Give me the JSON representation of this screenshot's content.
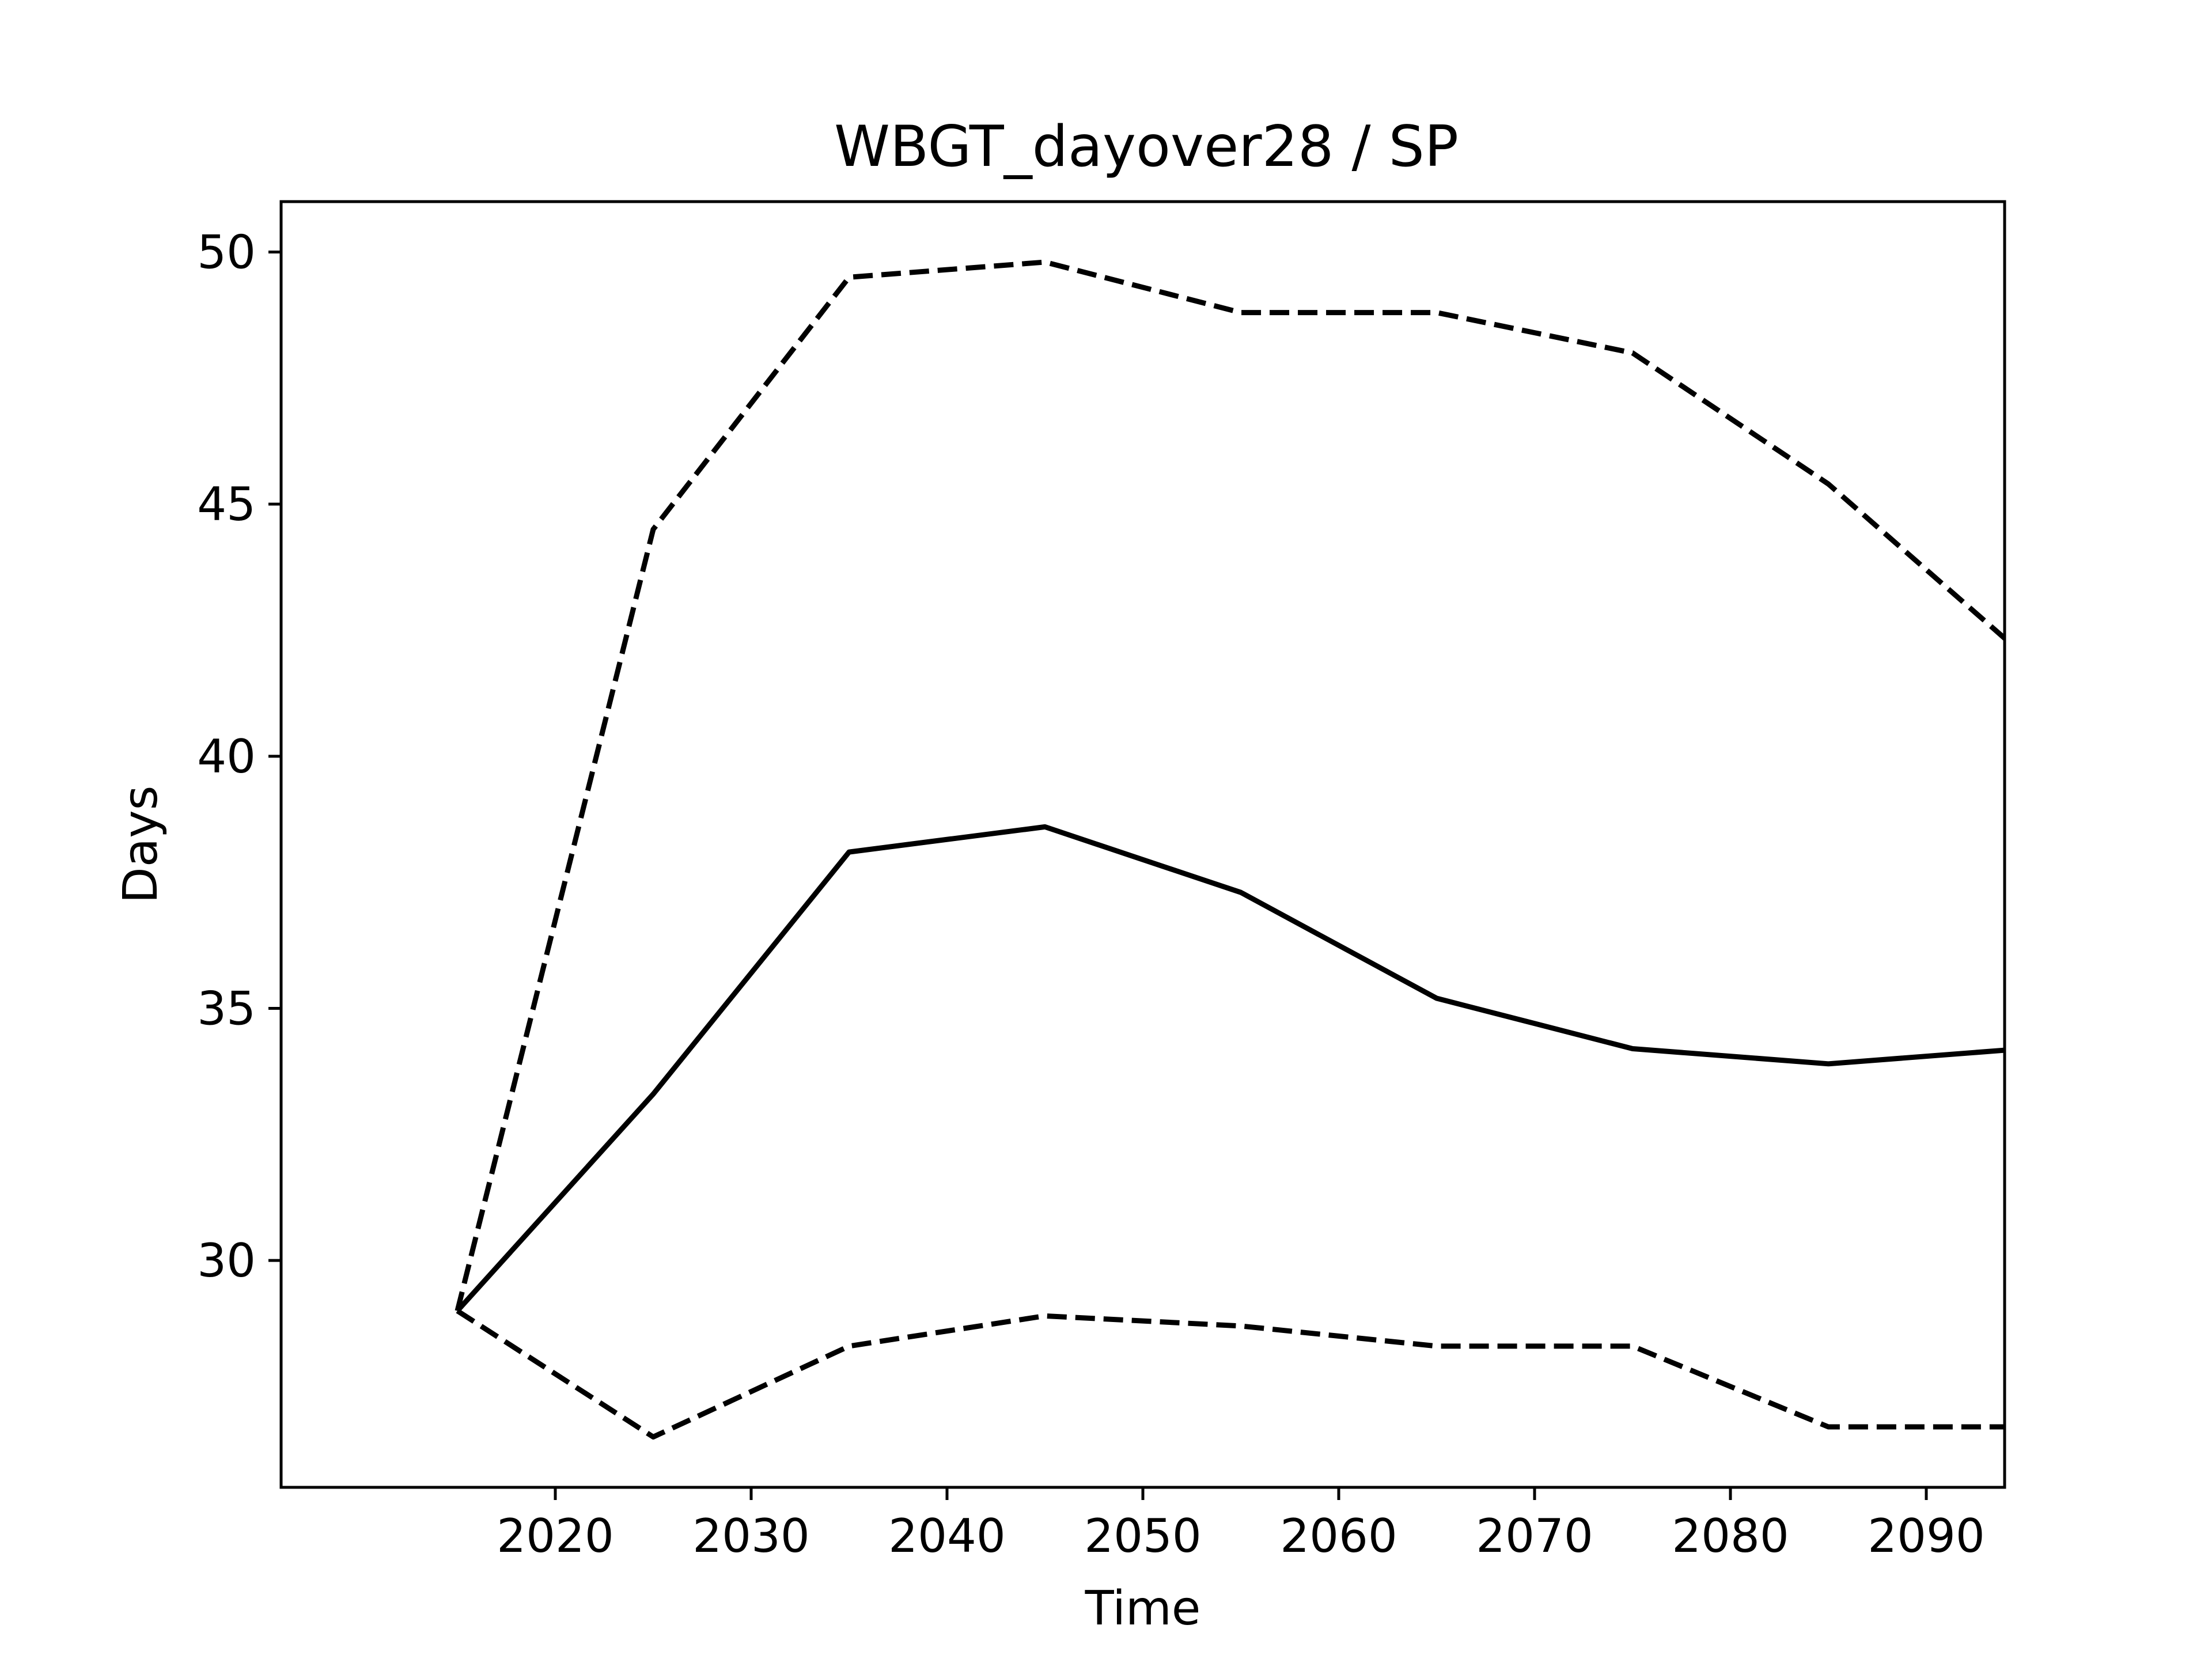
{
  "chart_data": {
    "type": "line",
    "title": "WBGT_dayover28 / SP",
    "xlabel": "Time",
    "ylabel": "Days",
    "x": [
      2015,
      2025,
      2035,
      2045,
      2055,
      2065,
      2075,
      2085,
      2095
    ],
    "xlim": [
      2006,
      2094
    ],
    "ylim": [
      25.5,
      51.0
    ],
    "xticks": [
      2020,
      2030,
      2040,
      2050,
      2060,
      2070,
      2080,
      2090
    ],
    "yticks": [
      30,
      35,
      40,
      45,
      50
    ],
    "grid": false,
    "series": [
      {
        "style": "solid",
        "color": "#000000",
        "values": [
          29.0,
          33.3,
          38.1,
          38.6,
          37.3,
          35.2,
          34.2,
          33.9,
          34.2
        ]
      },
      {
        "style": "dashed",
        "color": "#000000",
        "values": [
          29.0,
          44.5,
          49.5,
          49.8,
          48.8,
          48.8,
          48.0,
          45.4,
          42.0
        ]
      },
      {
        "style": "dashed",
        "color": "#000000",
        "values": [
          29.0,
          26.5,
          28.3,
          28.9,
          28.7,
          28.3,
          28.3,
          26.7,
          26.7
        ]
      }
    ]
  }
}
